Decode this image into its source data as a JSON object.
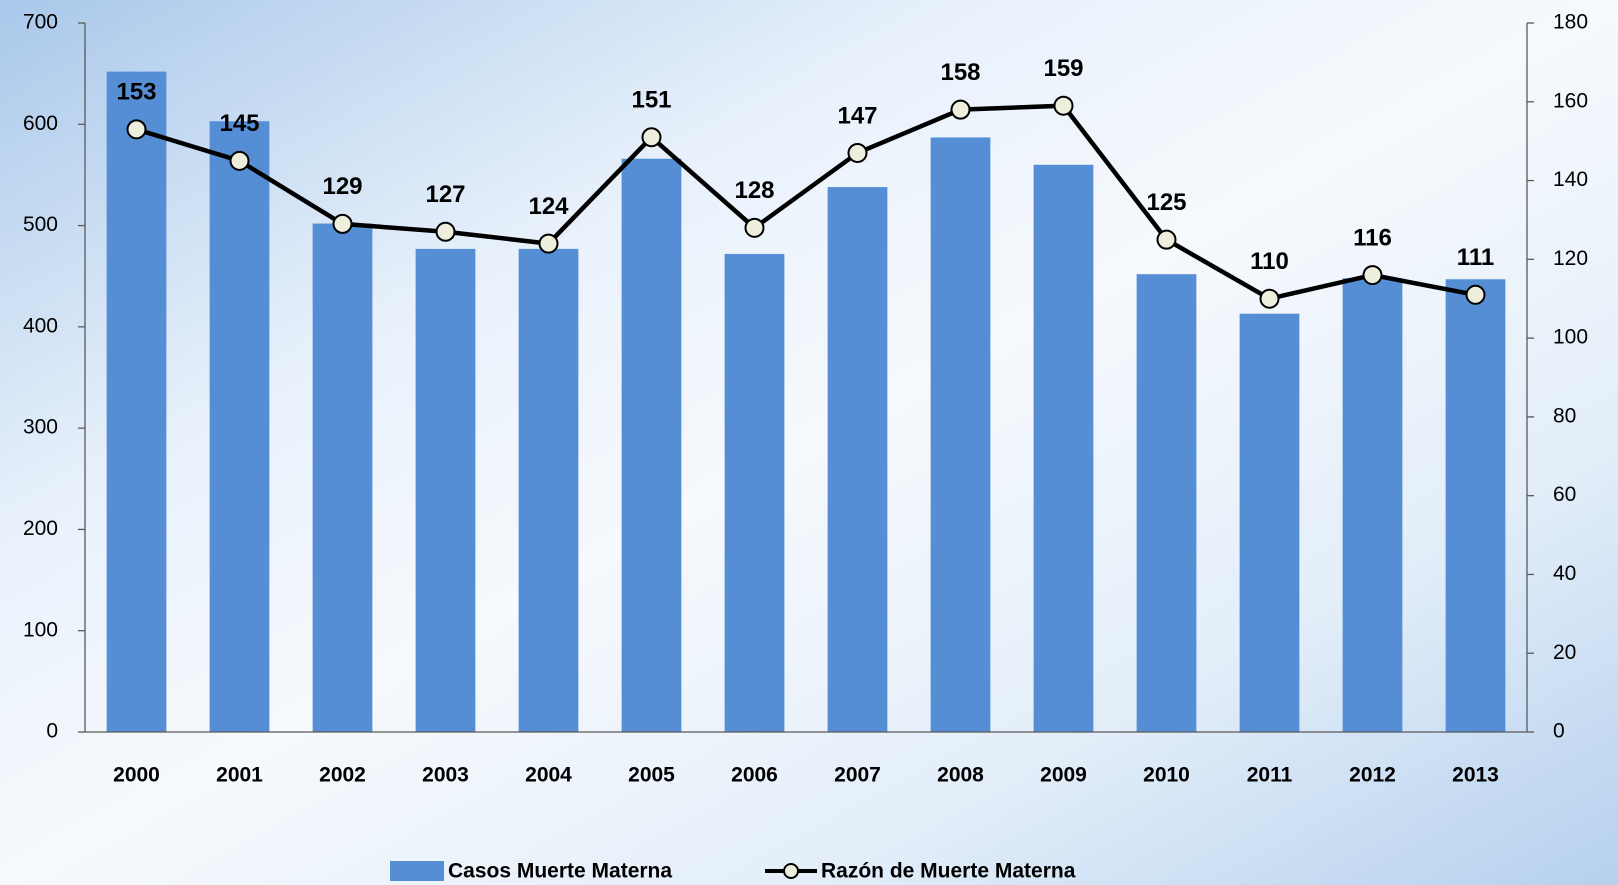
{
  "chart_data": {
    "type": "bar",
    "categories": [
      "2000",
      "2001",
      "2002",
      "2003",
      "2004",
      "2005",
      "2006",
      "2007",
      "2008",
      "2009",
      "2010",
      "2011",
      "2012",
      "2013"
    ],
    "series": [
      {
        "name": "Casos Muerte Materna",
        "type": "bar",
        "color": "#558ed5",
        "values": [
          652,
          603,
          502,
          477,
          477,
          566,
          472,
          538,
          587,
          560,
          452,
          413,
          448,
          447
        ]
      },
      {
        "name": "Razón de Muerte Materna",
        "type": "line",
        "axis": "y2",
        "color": "#000000",
        "marker_color": "#eeeedd",
        "values": [
          153,
          145,
          129,
          127,
          124,
          151,
          128,
          147,
          158,
          159,
          125,
          110,
          116,
          111
        ]
      }
    ],
    "ylim": [
      0,
      700
    ],
    "yticks": [
      0,
      100,
      200,
      300,
      400,
      500,
      600,
      700
    ],
    "y2lim": [
      0,
      180
    ],
    "y2ticks": [
      0,
      20,
      40,
      60,
      80,
      100,
      120,
      140,
      160,
      180
    ],
    "data_labels_series": 1,
    "legend": "bottom"
  }
}
